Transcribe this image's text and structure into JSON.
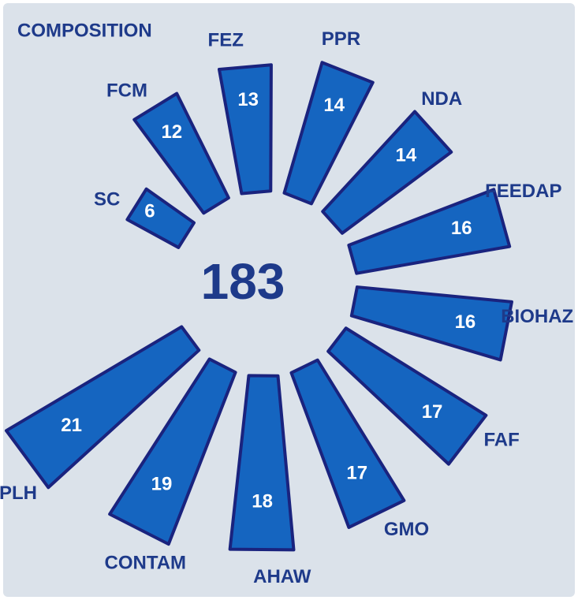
{
  "chart_data": {
    "type": "radial-bar",
    "title": "COMPOSITION",
    "total": 183,
    "categories": [
      "SC",
      "FCM",
      "FEZ",
      "PPR",
      "NDA",
      "FEEDAP",
      "BIOHAZ",
      "FAF",
      "GMO",
      "AHAW",
      "CONTAM",
      "PLH"
    ],
    "values": [
      6,
      12,
      13,
      14,
      14,
      16,
      16,
      17,
      17,
      18,
      19,
      21
    ],
    "color": "#1565c0",
    "stroke": "#1a237e",
    "label_color": "#1e3a8a"
  }
}
